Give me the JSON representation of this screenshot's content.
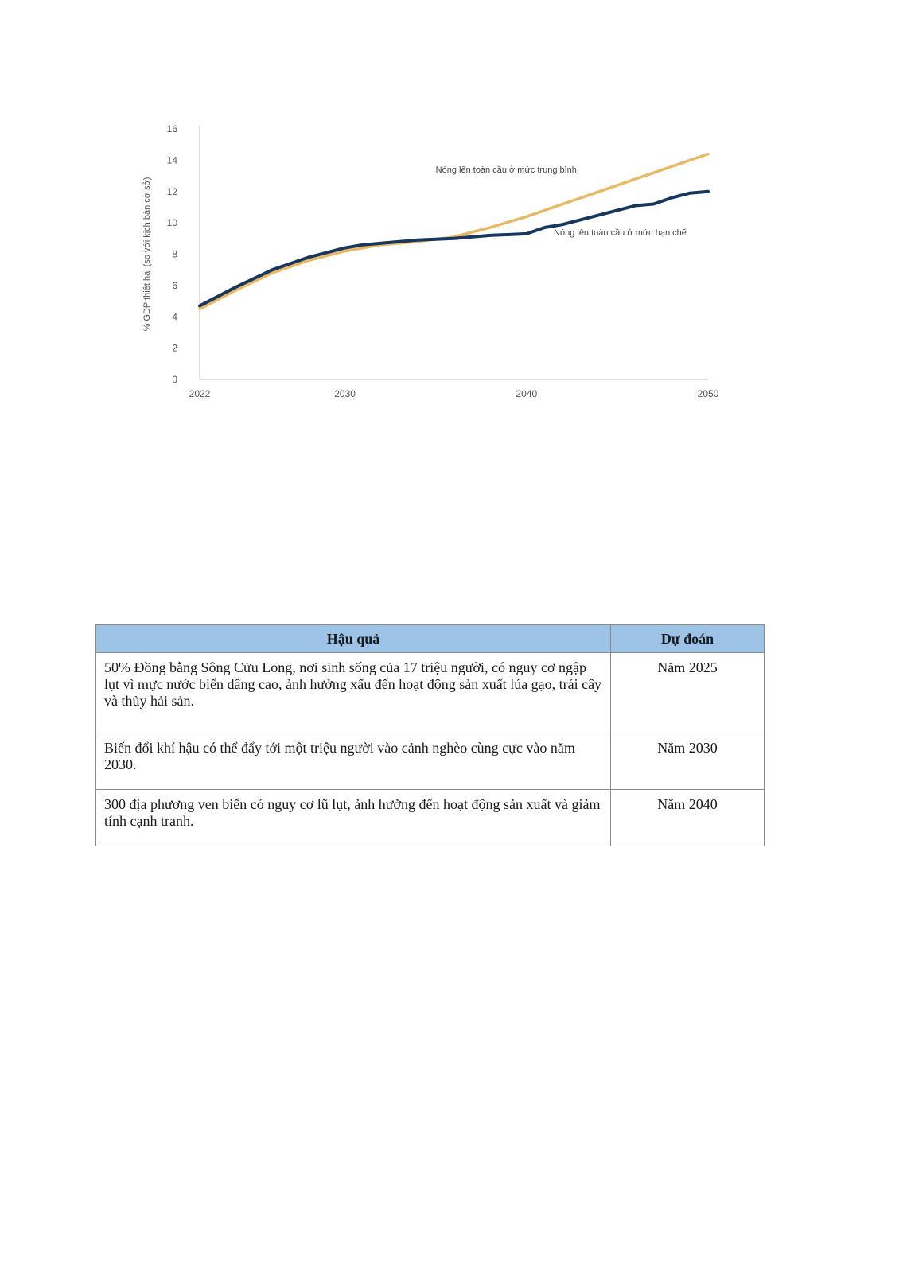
{
  "chart_data": {
    "type": "line",
    "ylabel": "% GDP thiệt hại (so với kịch bản cơ sở)",
    "xlabel": "",
    "xlim": [
      2022,
      2050
    ],
    "ylim": [
      0,
      16
    ],
    "xticks": [
      2022,
      2030,
      2040,
      2050
    ],
    "yticks": [
      0,
      2,
      4,
      6,
      8,
      10,
      12,
      14,
      16
    ],
    "series": [
      {
        "name": "Nóng lên toàn cầu ở mức trung bình",
        "color": "#e8b865",
        "x": [
          2022,
          2024,
          2026,
          2028,
          2030,
          2032,
          2034,
          2036,
          2038,
          2040,
          2042,
          2044,
          2046,
          2048,
          2050
        ],
        "y": [
          4.5,
          5.7,
          6.8,
          7.6,
          8.2,
          8.6,
          8.8,
          9.1,
          9.7,
          10.4,
          11.2,
          12.0,
          12.8,
          13.6,
          14.4
        ]
      },
      {
        "name": "Nóng lên toàn cầu ở mức hạn chế",
        "color": "#17375e",
        "x": [
          2022,
          2024,
          2026,
          2028,
          2030,
          2031,
          2032,
          2034,
          2036,
          2038,
          2040,
          2041,
          2042,
          2043,
          2044,
          2045,
          2046,
          2047,
          2048,
          2049,
          2050
        ],
        "y": [
          4.7,
          5.9,
          7.0,
          7.8,
          8.4,
          8.6,
          8.7,
          8.9,
          9.0,
          9.2,
          9.3,
          9.7,
          9.9,
          10.2,
          10.5,
          10.8,
          11.1,
          11.2,
          11.6,
          11.9,
          12.0
        ]
      }
    ],
    "annotations": [
      {
        "text": "Nóng lên toàn cầu ở mức trung bình",
        "x": 2035,
        "y": 13.2
      },
      {
        "text": "Nóng lên toàn cầu ở mức hạn chế",
        "x": 2041.5,
        "y": 9.2
      }
    ]
  },
  "table": {
    "headers": [
      "Hậu quả",
      "Dự đoán"
    ],
    "rows": [
      {
        "consequence": "50% Đồng bằng Sông Cửu Long, nơi sinh sống của 17 triệu người, có nguy cơ ngập lụt vì mực nước biển dâng cao, ảnh hưởng xấu đến hoạt động sản xuất lúa gạo, trái cây và thủy hải sản.",
        "forecast": "Năm 2025"
      },
      {
        "consequence": "Biến đổi khí hậu có thể đẩy tới một triệu người vào cảnh nghèo cùng cực vào năm 2030.",
        "forecast": "Năm 2030"
      },
      {
        "consequence": "300 địa phương ven biển có nguy cơ lũ lụt, ảnh hưởng đến hoạt động sản xuất và giảm tính cạnh tranh.",
        "forecast": "Năm 2040"
      }
    ]
  }
}
